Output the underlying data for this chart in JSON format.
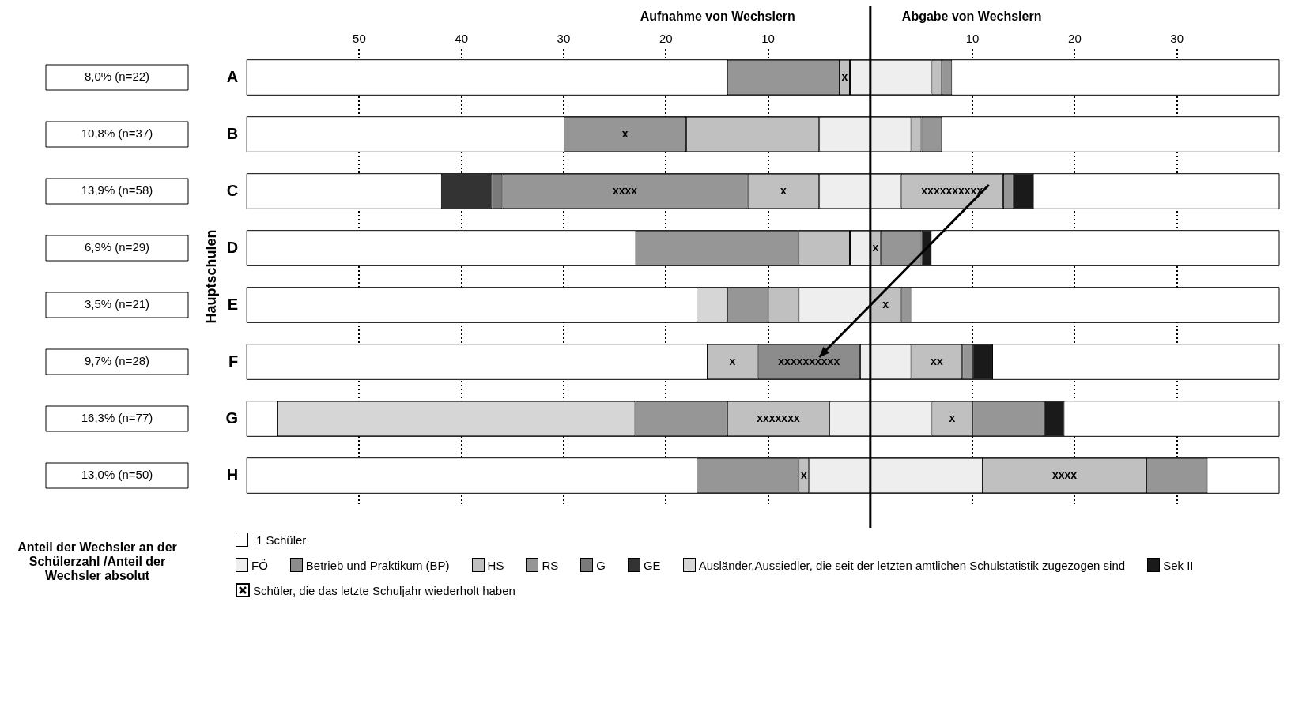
{
  "chart_data": {
    "type": "bar",
    "orientation": "horizontal",
    "stacked": true,
    "ylabel": "Hauptschulen",
    "categories": [
      "A",
      "B",
      "C",
      "D",
      "E",
      "F",
      "G",
      "H"
    ],
    "series": [
      {
        "name": "FÖ",
        "color": "#eeeeee",
        "values": [
          -2,
          -5,
          -5,
          -2,
          -7,
          -1,
          -4,
          -6
        ]
      },
      {
        "name": "Betrieb und Praktikum (BP)",
        "color": "#8c8c8c",
        "values": [
          null,
          null,
          null,
          null,
          null,
          -10,
          null,
          null
        ],
        "value_labels": [
          null,
          null,
          null,
          null,
          null,
          "xxxxxxxxxx",
          null,
          null
        ]
      },
      {
        "name": "HS",
        "color": "#c0c0c0",
        "values": [
          -1,
          -13,
          -7,
          -5,
          -3,
          -5,
          -10,
          -1
        ],
        "value_labels": [
          "x",
          null,
          "x",
          null,
          null,
          "x",
          "xxxxxxx",
          "x"
        ]
      },
      {
        "name": "RS",
        "color": "#969696",
        "values": [
          -11,
          -12,
          -24,
          -16,
          -4,
          null,
          -9,
          -10
        ],
        "value_labels": [
          null,
          "x",
          "xxxx",
          null,
          null,
          null,
          null,
          null
        ]
      },
      {
        "name": "G",
        "color": "#7a7a7a",
        "values": [
          null,
          null,
          -1,
          null,
          null,
          null,
          null,
          null
        ]
      },
      {
        "name": "GE",
        "color": "#333333",
        "values": [
          null,
          null,
          -5,
          null,
          null,
          null,
          null,
          null
        ]
      },
      {
        "name": "Ausländer,Aussiedler, die seit der letzten amtlichen Schulstatistik zugezogen sind",
        "color": "#d6d6d6",
        "values": [
          null,
          null,
          null,
          null,
          -3,
          null,
          -35,
          null
        ]
      },
      {
        "color": "#eeeeee",
        "values": [
          6,
          4,
          3,
          null,
          null,
          4,
          6,
          11
        ]
      },
      {
        "color": "#c0c0c0",
        "values": [
          1,
          1,
          10,
          1,
          3,
          5,
          4,
          16
        ],
        "value_labels": [
          null,
          null,
          "xxxxxxxxxx",
          "x",
          "x",
          "xx",
          "x",
          "xxxx"
        ]
      },
      {
        "color": "#969696",
        "values": [
          1,
          2,
          1,
          4,
          1,
          1,
          7,
          6
        ]
      },
      {
        "name": "Sek II",
        "color": "#1a1a1a",
        "values": [
          null,
          null,
          2,
          1,
          null,
          2,
          2,
          null
        ]
      }
    ],
    "xlim": [
      -61,
      40
    ],
    "xticks": [
      {
        "value": -50,
        "label": "50"
      },
      {
        "value": -40,
        "label": "40"
      },
      {
        "value": -30,
        "label": "30"
      },
      {
        "value": -20,
        "label": "20"
      },
      {
        "value": -10,
        "label": "10"
      },
      10,
      20,
      30
    ],
    "grid": "x",
    "legend": "bottom",
    "ref_lines": [
      {
        "axis": "x",
        "value": 0,
        "color": "#000000"
      }
    ],
    "annotations": [
      "Aufnahme von Wechslern",
      "Abgabe von Wechslern",
      "1 Schüler",
      "Schüler, die das letzte Schuljahr wiederholt haben",
      "Anteil der Wechsler an der Schülerzahl /Anteil der Wechsler absolut",
      "8,0% (n=22)",
      "10,8% (n=37)",
      "13,9% (n=58)",
      "6,9% (n=29)",
      "3,5% (n=21)",
      "9,7% (n=28)",
      "16,3% (n=77)",
      "13,0% (n=50)"
    ]
  }
}
